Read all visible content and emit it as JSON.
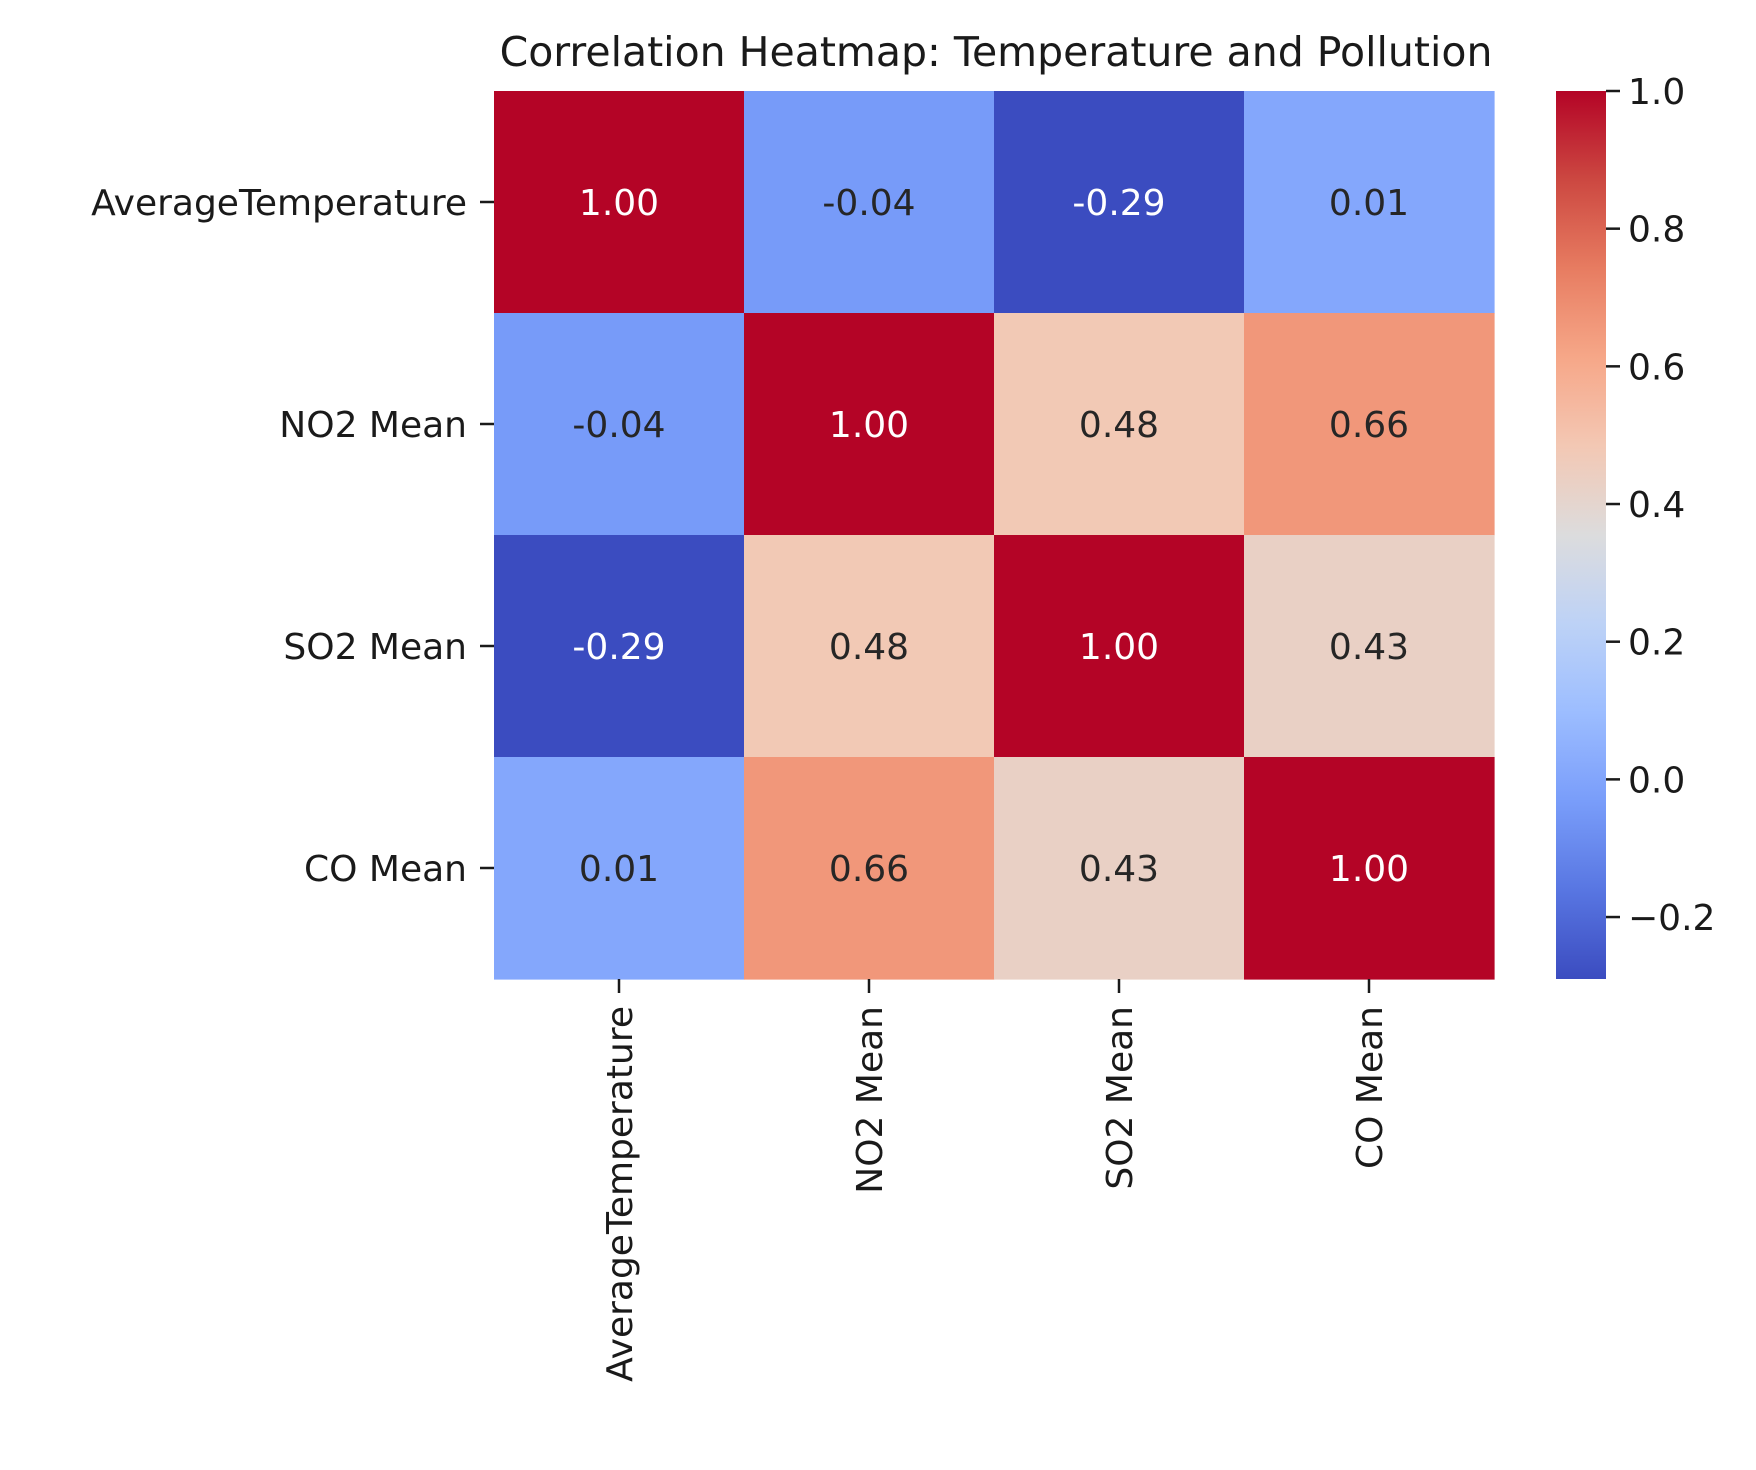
{
  "chart_data": {
    "type": "heatmap",
    "title": "Correlation Heatmap: Temperature and Pollution",
    "xlabel": "",
    "ylabel": "",
    "rows": [
      "AverageTemperature",
      "NO2 Mean",
      "SO2 Mean",
      "CO Mean"
    ],
    "columns": [
      "AverageTemperature",
      "NO2 Mean",
      "SO2 Mean",
      "CO Mean"
    ],
    "values": [
      [
        1.0,
        -0.04,
        -0.29,
        0.01
      ],
      [
        -0.04,
        1.0,
        0.48,
        0.66
      ],
      [
        -0.29,
        0.48,
        1.0,
        0.43
      ],
      [
        0.01,
        0.66,
        0.43,
        1.0
      ]
    ],
    "annotation_format": "0.00",
    "colormap": "coolwarm",
    "colorbar": {
      "vmin": -0.29,
      "vmax": 1.0,
      "ticks": [
        -0.2,
        0.0,
        0.2,
        0.4,
        0.6,
        0.8,
        1.0
      ],
      "tick_labels": [
        "−0.2",
        "0.0",
        "0.2",
        "0.4",
        "0.6",
        "0.8",
        "1.0"
      ]
    },
    "grid": false,
    "legend": "colorbar-right"
  }
}
